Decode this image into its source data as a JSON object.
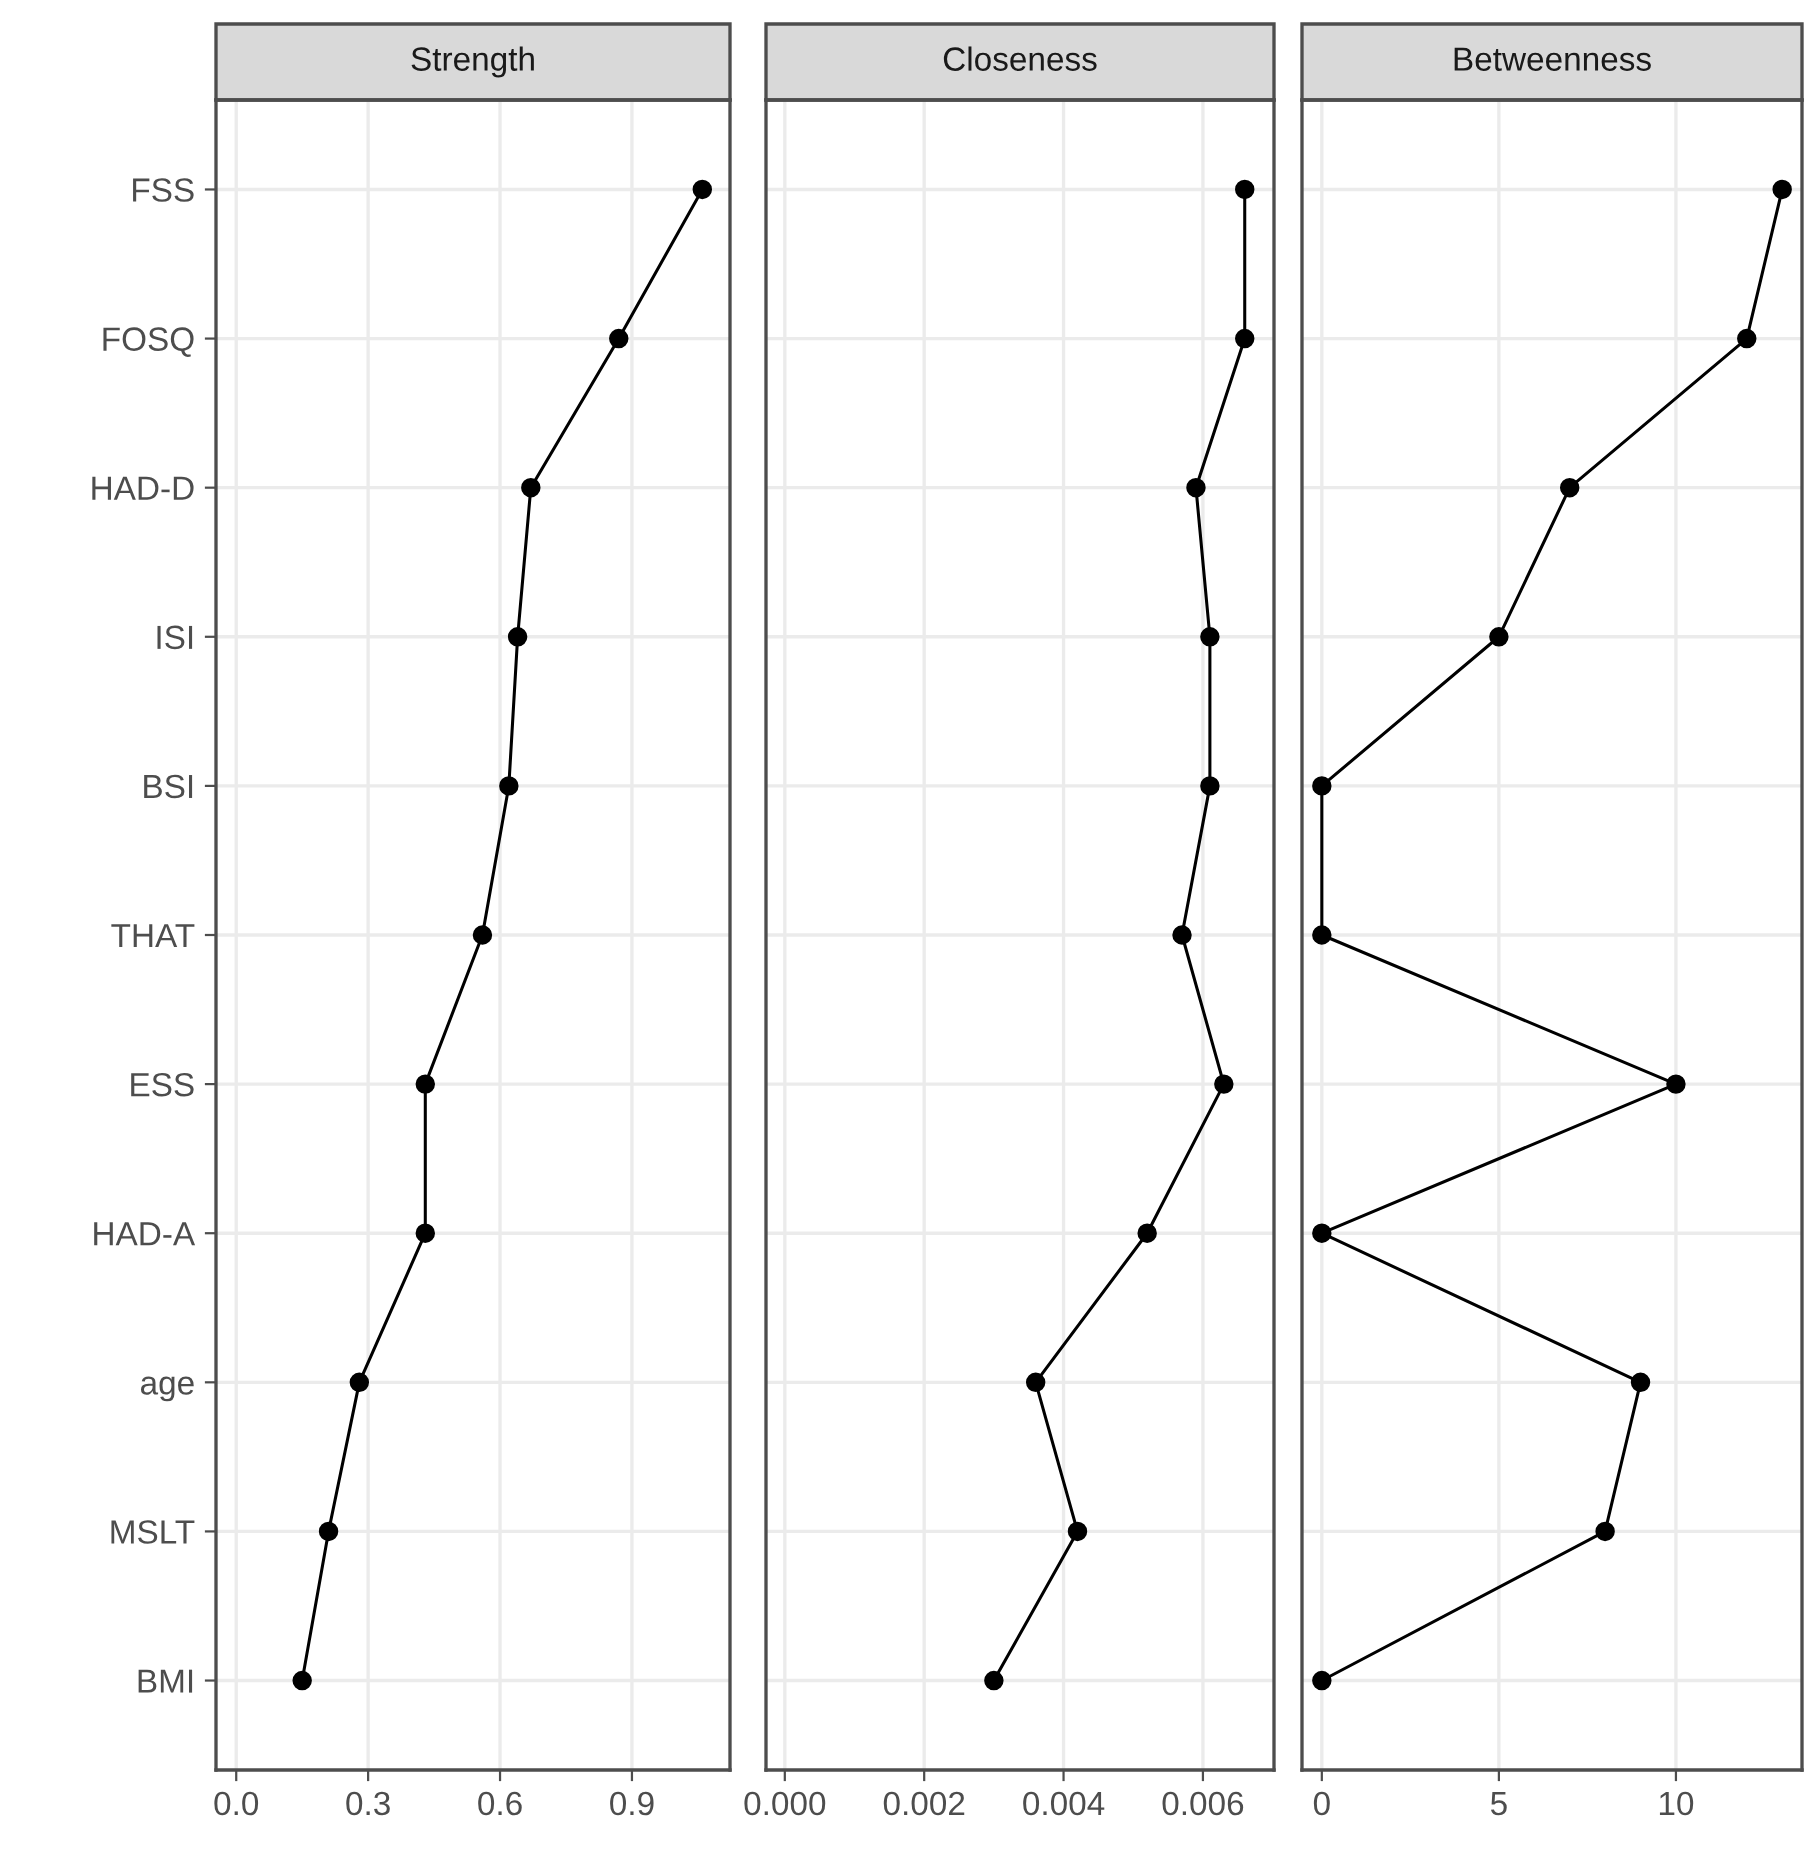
{
  "chart_data": [
    {
      "type": "line",
      "orientation": "horizontal",
      "title": "Strength",
      "categories": [
        "FSS",
        "FOSQ",
        "HAD-D",
        "ISI",
        "BSI",
        "THAT",
        "ESS",
        "HAD-A",
        "age",
        "MSLT",
        "BMI"
      ],
      "series": [
        {
          "color": "#000000",
          "values": [
            1.06,
            0.87,
            0.67,
            0.64,
            0.62,
            0.56,
            0.43,
            0.43,
            0.28,
            0.21,
            0.15
          ]
        }
      ],
      "xlim": [
        -0.046,
        1.123
      ],
      "xticks": [
        {
          "value": 0,
          "label": "0.0"
        },
        0.3,
        0.6,
        0.9
      ],
      "grid": true,
      "marker": "circle",
      "line_style": "solid"
    },
    {
      "type": "line",
      "orientation": "horizontal",
      "title": "Closeness",
      "categories": [
        null,
        null,
        null,
        null,
        null,
        null,
        null,
        null,
        null,
        null,
        null
      ],
      "series": [
        {
          "color": "#000000",
          "values": [
            0.0066,
            0.0066,
            0.0059,
            0.0061,
            0.0061,
            0.0057,
            0.0063,
            0.0052,
            0.0036,
            0.0042,
            0.003
          ]
        }
      ],
      "xlim": [
        -0.00027,
        0.00702
      ],
      "xticks": [
        {
          "value": 0,
          "label": "0.000"
        },
        0.002,
        0.004,
        0.006
      ],
      "grid": true,
      "marker": "circle",
      "line_style": "solid",
      "tick_labels": "x"
    },
    {
      "type": "line",
      "orientation": "horizontal",
      "title": "Betweenness",
      "categories": [
        null,
        null,
        null,
        null,
        null,
        null,
        null,
        null,
        null,
        null,
        null
      ],
      "series": [
        {
          "color": "#000000",
          "values": [
            13,
            12,
            7,
            5,
            0,
            0,
            10,
            0,
            9,
            8,
            0
          ]
        }
      ],
      "xlim": [
        -0.56,
        13.56
      ],
      "xticks": [
        0,
        5,
        10
      ],
      "grid": true,
      "marker": "circle",
      "line_style": "solid",
      "tick_labels": "x"
    }
  ]
}
